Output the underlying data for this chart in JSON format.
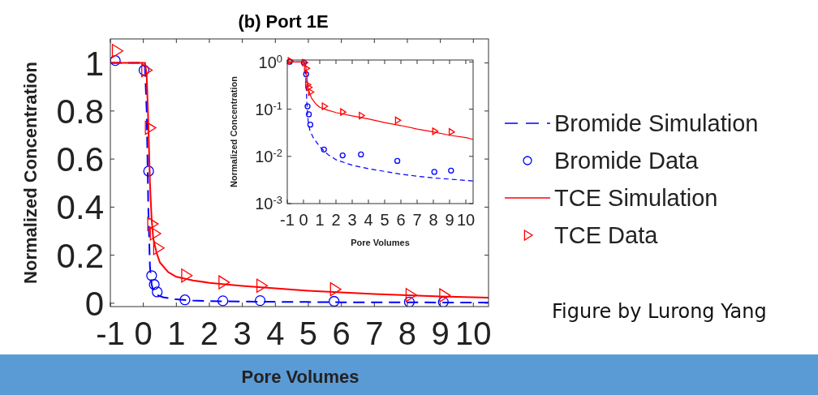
{
  "chart_data": [
    {
      "type": "line",
      "title": "(b) Port 1E",
      "xlabel": "Pore Volumes",
      "ylabel": "Normalized Concentration",
      "xlim": [
        -1,
        10.46
      ],
      "xticks": [
        -1,
        0,
        1,
        2,
        3,
        4,
        5,
        6,
        7,
        8,
        9,
        10
      ],
      "ylim": [
        -0.014,
        1.1
      ],
      "yticks": [
        0,
        0.2,
        0.4,
        0.6,
        0.8,
        1
      ],
      "legend": "right",
      "annotations": [
        "Figure by Lurong Yang"
      ],
      "series": [
        {
          "name": "Bromide Simulation",
          "line_style": "dashed",
          "color": "#0000ff",
          "x": [
            -1,
            0,
            0.05,
            0.1,
            0.15,
            0.2,
            0.25,
            0.3,
            0.4,
            0.6,
            1,
            1.5,
            2,
            3,
            4,
            5,
            6,
            7,
            8,
            9,
            10,
            10.46
          ],
          "values": [
            1,
            1,
            0.98,
            0.8,
            0.4,
            0.15,
            0.08,
            0.05,
            0.035,
            0.025,
            0.016,
            0.011,
            0.009,
            0.007,
            0.006,
            0.005,
            0.004,
            0.004,
            0.004,
            0.003,
            0.003,
            0.003
          ]
        },
        {
          "name": "Bromide Data",
          "type": "scatter",
          "marker": "circle",
          "color": "#0000ff",
          "x": [
            -0.85,
            0.02,
            0.16,
            0.25,
            0.33,
            0.42,
            1.26,
            2.41,
            3.54,
            5.78,
            8.06,
            9.09
          ],
          "values": [
            1.01,
            0.97,
            0.55,
            0.115,
            0.078,
            0.047,
            0.014,
            0.01,
            0.011,
            0.008,
            0.005,
            0.005
          ]
        },
        {
          "name": "TCE Simulation",
          "line_style": "solid",
          "color": "#ff0000",
          "x": [
            -1,
            0.05,
            0.1,
            0.15,
            0.2,
            0.25,
            0.3,
            0.4,
            0.5,
            0.75,
            1,
            1.5,
            2,
            3,
            4,
            5,
            6,
            7,
            8,
            9,
            10,
            10.46
          ],
          "values": [
            1,
            1,
            0.95,
            0.75,
            0.5,
            0.35,
            0.27,
            0.21,
            0.17,
            0.13,
            0.11,
            0.095,
            0.085,
            0.072,
            0.062,
            0.052,
            0.045,
            0.038,
            0.033,
            0.028,
            0.025,
            0.023
          ]
        },
        {
          "name": "TCE Data",
          "type": "scatter",
          "marker": "triangle",
          "color": "#ff0000",
          "x": [
            -0.82,
            0.07,
            0.18,
            0.25,
            0.33,
            0.43,
            1.28,
            2.41,
            3.56,
            5.79,
            8.08,
            9.1
          ],
          "values": [
            1.05,
            0.97,
            0.73,
            0.33,
            0.29,
            0.23,
            0.115,
            0.087,
            0.073,
            0.058,
            0.034,
            0.033
          ]
        }
      ]
    },
    {
      "type": "line",
      "xlabel": "Pore Volumes",
      "ylabel": "Normalized Concentration",
      "log": "y",
      "xlim": [
        -1,
        10.45
      ],
      "xticks": [
        -1,
        0,
        1,
        2,
        3,
        4,
        5,
        6,
        7,
        8,
        9,
        10
      ],
      "ylim": [
        0.001,
        1.1
      ],
      "yticks": [
        {
          "value": 0.001,
          "label": "10$^{-3}$"
        },
        {
          "value": 0.01,
          "label": "10$^{-2}$"
        },
        {
          "value": 0.1,
          "label": "10$^{-1}$"
        },
        {
          "value": 1,
          "label": "10$^{0}$"
        }
      ],
      "series": [
        {
          "line_style": "dashed",
          "color": "#0000ff",
          "x": [
            -1,
            0,
            0.05,
            0.1,
            0.15,
            0.2,
            0.25,
            0.3,
            0.4,
            0.6,
            1,
            1.5,
            2,
            3,
            4,
            5,
            6,
            7,
            8,
            9,
            10,
            10.45
          ],
          "values": [
            1,
            1,
            0.98,
            0.8,
            0.4,
            0.15,
            0.08,
            0.05,
            0.035,
            0.025,
            0.016,
            0.011,
            0.0085,
            0.0065,
            0.0055,
            0.0048,
            0.0042,
            0.0038,
            0.0035,
            0.0033,
            0.0031,
            0.003
          ]
        },
        {
          "type": "scatter",
          "marker": "circle",
          "color": "#0000ff",
          "x": [
            -0.85,
            0.02,
            0.16,
            0.25,
            0.33,
            0.42,
            1.26,
            2.41,
            3.54,
            5.78,
            8.06,
            9.09
          ],
          "values": [
            1.01,
            0.97,
            0.55,
            0.115,
            0.078,
            0.047,
            0.014,
            0.0105,
            0.011,
            0.008,
            0.0047,
            0.005
          ]
        },
        {
          "line_style": "solid",
          "color": "#ff0000",
          "x": [
            -1,
            0.05,
            0.1,
            0.15,
            0.2,
            0.25,
            0.3,
            0.4,
            0.5,
            0.75,
            1,
            1.5,
            2,
            3,
            4,
            5,
            6,
            7,
            8,
            9,
            10,
            10.45
          ],
          "values": [
            1,
            1,
            0.95,
            0.75,
            0.5,
            0.35,
            0.27,
            0.21,
            0.17,
            0.13,
            0.11,
            0.095,
            0.085,
            0.072,
            0.062,
            0.052,
            0.045,
            0.038,
            0.033,
            0.028,
            0.025,
            0.023
          ]
        },
        {
          "type": "scatter",
          "marker": "triangle",
          "color": "#ff0000",
          "x": [
            -0.82,
            0.07,
            0.18,
            0.25,
            0.33,
            0.43,
            1.28,
            2.41,
            3.56,
            5.79,
            8.08,
            9.1
          ],
          "values": [
            1.05,
            0.97,
            0.73,
            0.33,
            0.29,
            0.23,
            0.115,
            0.087,
            0.073,
            0.058,
            0.034,
            0.033
          ]
        }
      ]
    }
  ]
}
